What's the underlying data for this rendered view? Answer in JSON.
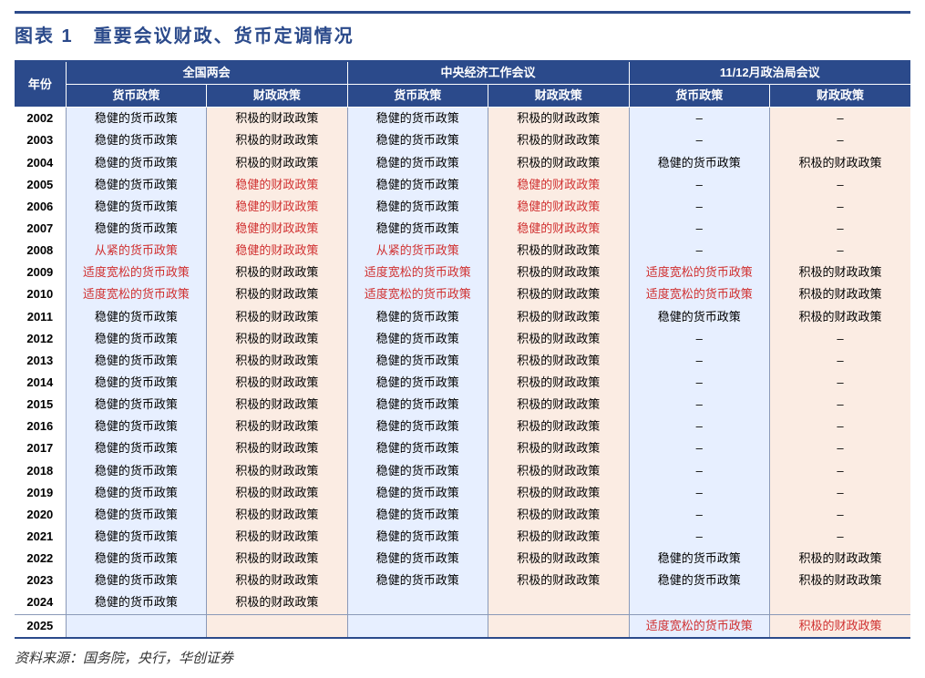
{
  "title": "图表 1　重要会议财政、货币定调情况",
  "source": "资料来源：国务院，央行，华创证券",
  "header": {
    "year": "年份",
    "groups": [
      "全国两会",
      "中央经济工作会议",
      "11/12月政治局会议"
    ],
    "sub": [
      "货币政策",
      "财政政策"
    ]
  },
  "colors": {
    "header_bg": "#2b4a8b",
    "header_fg": "#ffffff",
    "monetary_bg": "#e7efff",
    "fiscal_bg": "#fbece3",
    "highlight_text": "#d03030",
    "rule": "#2b4a8b",
    "grid": "#8a99b8"
  },
  "rows": [
    {
      "year": "2002",
      "cells": [
        {
          "t": "稳健的货币政策"
        },
        {
          "t": "积极的财政政策"
        },
        {
          "t": "稳健的货币政策"
        },
        {
          "t": "积极的财政政策"
        },
        {
          "t": "–"
        },
        {
          "t": "–"
        }
      ]
    },
    {
      "year": "2003",
      "cells": [
        {
          "t": "稳健的货币政策"
        },
        {
          "t": "积极的财政政策"
        },
        {
          "t": "稳健的货币政策"
        },
        {
          "t": "积极的财政政策"
        },
        {
          "t": "–"
        },
        {
          "t": "–"
        }
      ]
    },
    {
      "year": "2004",
      "cells": [
        {
          "t": "稳健的货币政策"
        },
        {
          "t": "积极的财政政策"
        },
        {
          "t": "稳健的货币政策"
        },
        {
          "t": "积极的财政政策"
        },
        {
          "t": "稳健的货币政策"
        },
        {
          "t": "积极的财政政策"
        }
      ]
    },
    {
      "year": "2005",
      "cells": [
        {
          "t": "稳健的货币政策"
        },
        {
          "t": "稳健的财政政策",
          "hl": true
        },
        {
          "t": "稳健的货币政策"
        },
        {
          "t": "稳健的财政政策",
          "hl": true
        },
        {
          "t": "–"
        },
        {
          "t": "–"
        }
      ]
    },
    {
      "year": "2006",
      "cells": [
        {
          "t": "稳健的货币政策"
        },
        {
          "t": "稳健的财政政策",
          "hl": true
        },
        {
          "t": "稳健的货币政策"
        },
        {
          "t": "稳健的财政政策",
          "hl": true
        },
        {
          "t": "–"
        },
        {
          "t": "–"
        }
      ]
    },
    {
      "year": "2007",
      "cells": [
        {
          "t": "稳健的货币政策"
        },
        {
          "t": "稳健的财政政策",
          "hl": true
        },
        {
          "t": "稳健的货币政策"
        },
        {
          "t": "稳健的财政政策",
          "hl": true
        },
        {
          "t": "–"
        },
        {
          "t": "–"
        }
      ]
    },
    {
      "year": "2008",
      "cells": [
        {
          "t": "从紧的货币政策",
          "hl": true
        },
        {
          "t": "稳健的财政政策",
          "hl": true
        },
        {
          "t": "从紧的货币政策",
          "hl": true
        },
        {
          "t": "积极的财政政策"
        },
        {
          "t": "–"
        },
        {
          "t": "–"
        }
      ]
    },
    {
      "year": "2009",
      "cells": [
        {
          "t": "适度宽松的货币政策",
          "hl": true
        },
        {
          "t": "积极的财政政策"
        },
        {
          "t": "适度宽松的货币政策",
          "hl": true
        },
        {
          "t": "积极的财政政策"
        },
        {
          "t": "适度宽松的货币政策",
          "hl": true
        },
        {
          "t": "积极的财政政策"
        }
      ]
    },
    {
      "year": "2010",
      "cells": [
        {
          "t": "适度宽松的货币政策",
          "hl": true
        },
        {
          "t": "积极的财政政策"
        },
        {
          "t": "适度宽松的货币政策",
          "hl": true
        },
        {
          "t": "积极的财政政策"
        },
        {
          "t": "适度宽松的货币政策",
          "hl": true
        },
        {
          "t": "积极的财政政策"
        }
      ]
    },
    {
      "year": "2011",
      "cells": [
        {
          "t": "稳健的货币政策"
        },
        {
          "t": "积极的财政政策"
        },
        {
          "t": "稳健的货币政策"
        },
        {
          "t": "积极的财政政策"
        },
        {
          "t": "稳健的货币政策"
        },
        {
          "t": "积极的财政政策"
        }
      ]
    },
    {
      "year": "2012",
      "cells": [
        {
          "t": "稳健的货币政策"
        },
        {
          "t": "积极的财政政策"
        },
        {
          "t": "稳健的货币政策"
        },
        {
          "t": "积极的财政政策"
        },
        {
          "t": "–"
        },
        {
          "t": "–"
        }
      ]
    },
    {
      "year": "2013",
      "cells": [
        {
          "t": "稳健的货币政策"
        },
        {
          "t": "积极的财政政策"
        },
        {
          "t": "稳健的货币政策"
        },
        {
          "t": "积极的财政政策"
        },
        {
          "t": "–"
        },
        {
          "t": "–"
        }
      ]
    },
    {
      "year": "2014",
      "cells": [
        {
          "t": "稳健的货币政策"
        },
        {
          "t": "积极的财政政策"
        },
        {
          "t": "稳健的货币政策"
        },
        {
          "t": "积极的财政政策"
        },
        {
          "t": "–"
        },
        {
          "t": "–"
        }
      ]
    },
    {
      "year": "2015",
      "cells": [
        {
          "t": "稳健的货币政策"
        },
        {
          "t": "积极的财政政策"
        },
        {
          "t": "稳健的货币政策"
        },
        {
          "t": "积极的财政政策"
        },
        {
          "t": "–"
        },
        {
          "t": "–"
        }
      ]
    },
    {
      "year": "2016",
      "cells": [
        {
          "t": "稳健的货币政策"
        },
        {
          "t": "积极的财政政策"
        },
        {
          "t": "稳健的货币政策"
        },
        {
          "t": "积极的财政政策"
        },
        {
          "t": "–"
        },
        {
          "t": "–"
        }
      ]
    },
    {
      "year": "2017",
      "cells": [
        {
          "t": "稳健的货币政策"
        },
        {
          "t": "积极的财政政策"
        },
        {
          "t": "稳健的货币政策"
        },
        {
          "t": "积极的财政政策"
        },
        {
          "t": "–"
        },
        {
          "t": "–"
        }
      ]
    },
    {
      "year": "2018",
      "cells": [
        {
          "t": "稳健的货币政策"
        },
        {
          "t": "积极的财政政策"
        },
        {
          "t": "稳健的货币政策"
        },
        {
          "t": "积极的财政政策"
        },
        {
          "t": "–"
        },
        {
          "t": "–"
        }
      ]
    },
    {
      "year": "2019",
      "cells": [
        {
          "t": "稳健的货币政策"
        },
        {
          "t": "积极的财政政策"
        },
        {
          "t": "稳健的货币政策"
        },
        {
          "t": "积极的财政政策"
        },
        {
          "t": "–"
        },
        {
          "t": "–"
        }
      ]
    },
    {
      "year": "2020",
      "cells": [
        {
          "t": "稳健的货币政策"
        },
        {
          "t": "积极的财政政策"
        },
        {
          "t": "稳健的货币政策"
        },
        {
          "t": "积极的财政政策"
        },
        {
          "t": "–"
        },
        {
          "t": "–"
        }
      ]
    },
    {
      "year": "2021",
      "cells": [
        {
          "t": "稳健的货币政策"
        },
        {
          "t": "积极的财政政策"
        },
        {
          "t": "稳健的货币政策"
        },
        {
          "t": "积极的财政政策"
        },
        {
          "t": "–"
        },
        {
          "t": "–"
        }
      ]
    },
    {
      "year": "2022",
      "cells": [
        {
          "t": "稳健的货币政策"
        },
        {
          "t": "积极的财政政策"
        },
        {
          "t": "稳健的货币政策"
        },
        {
          "t": "积极的财政政策"
        },
        {
          "t": "稳健的货币政策"
        },
        {
          "t": "积极的财政政策"
        }
      ]
    },
    {
      "year": "2023",
      "cells": [
        {
          "t": "稳健的货币政策"
        },
        {
          "t": "积极的财政政策"
        },
        {
          "t": "稳健的货币政策"
        },
        {
          "t": "积极的财政政策"
        },
        {
          "t": "稳健的货币政策"
        },
        {
          "t": "积极的财政政策"
        }
      ]
    },
    {
      "year": "2024",
      "cells": [
        {
          "t": "稳健的货币政策"
        },
        {
          "t": "积极的财政政策"
        },
        {
          "t": ""
        },
        {
          "t": ""
        },
        {
          "t": ""
        },
        {
          "t": ""
        }
      ]
    },
    {
      "year": "2025",
      "cells": [
        {
          "t": ""
        },
        {
          "t": ""
        },
        {
          "t": ""
        },
        {
          "t": ""
        },
        {
          "t": "适度宽松的货币政策",
          "hl": true
        },
        {
          "t": "积极的财政政策",
          "hl": true
        }
      ]
    }
  ]
}
